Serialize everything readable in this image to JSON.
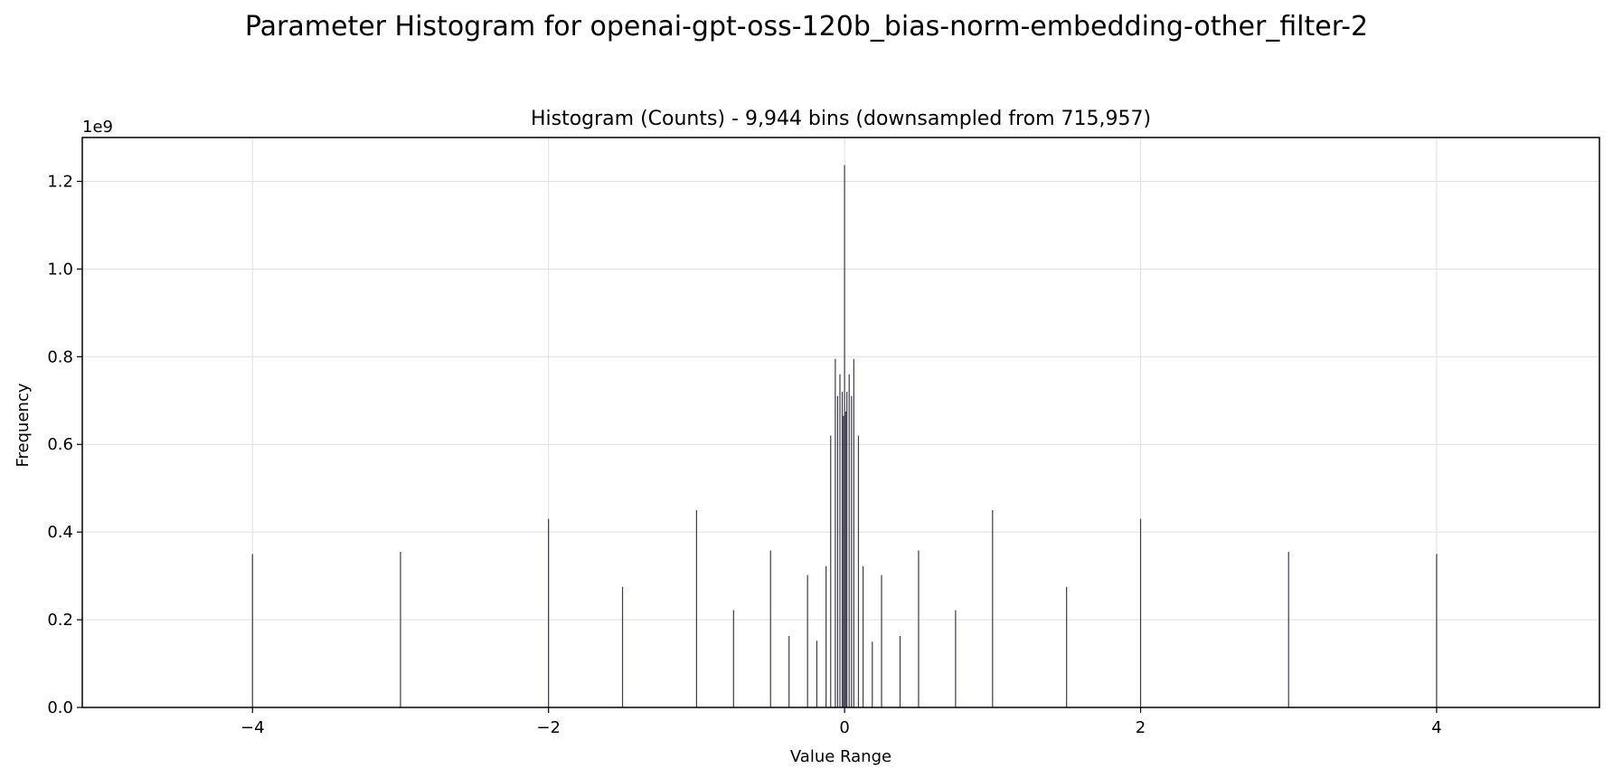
{
  "figure": {
    "suptitle": "Parameter Histogram for openai-gpt-oss-120b_bias-norm-embedding-other_filter-2"
  },
  "chart_data": {
    "type": "bar",
    "title": "Histogram (Counts) - 9,944 bins (downsampled from 715,957)",
    "xlabel": "Value Range",
    "ylabel": "Frequency",
    "y_scale_label": "1e9",
    "xlim": [
      -5.15,
      5.1
    ],
    "ylim": [
      0,
      1.3
    ],
    "grid": true,
    "x_ticks": [
      {
        "value": -4,
        "label": "−4"
      },
      {
        "value": -2,
        "label": "−2"
      },
      {
        "value": 0,
        "label": "0"
      },
      {
        "value": 2,
        "label": "2"
      },
      {
        "value": 4,
        "label": "4"
      }
    ],
    "y_ticks": [
      {
        "value": 0.0,
        "label": "0.0"
      },
      {
        "value": 0.2,
        "label": "0.2"
      },
      {
        "value": 0.4,
        "label": "0.4"
      },
      {
        "value": 0.6,
        "label": "0.6"
      },
      {
        "value": 0.8,
        "label": "0.8"
      },
      {
        "value": 1.0,
        "label": "1.0"
      },
      {
        "value": 1.2,
        "label": "1.2"
      }
    ],
    "bar_color": "#1a1a2e",
    "grid_color": "#e0e0e0",
    "bars": [
      {
        "x": -4.0,
        "y": 0.35
      },
      {
        "x": -3.0,
        "y": 0.355
      },
      {
        "x": -2.0,
        "y": 0.43
      },
      {
        "x": -1.5,
        "y": 0.275
      },
      {
        "x": -1.0,
        "y": 0.45
      },
      {
        "x": -0.75,
        "y": 0.222
      },
      {
        "x": -0.5,
        "y": 0.358
      },
      {
        "x": -0.375,
        "y": 0.163
      },
      {
        "x": -0.25,
        "y": 0.302
      },
      {
        "x": -0.1875,
        "y": 0.152
      },
      {
        "x": -0.125,
        "y": 0.322
      },
      {
        "x": -0.09375,
        "y": 0.62
      },
      {
        "x": -0.0625,
        "y": 0.795
      },
      {
        "x": -0.046875,
        "y": 0.71
      },
      {
        "x": -0.03125,
        "y": 0.76
      },
      {
        "x": -0.015625,
        "y": 0.72
      },
      {
        "x": -0.0078,
        "y": 0.665
      },
      {
        "x": 0.0,
        "y": 1.237
      },
      {
        "x": 0.0078,
        "y": 0.675
      },
      {
        "x": 0.015625,
        "y": 0.72
      },
      {
        "x": 0.03125,
        "y": 0.76
      },
      {
        "x": 0.046875,
        "y": 0.71
      },
      {
        "x": 0.0625,
        "y": 0.795
      },
      {
        "x": 0.09375,
        "y": 0.62
      },
      {
        "x": 0.125,
        "y": 0.322
      },
      {
        "x": 0.1875,
        "y": 0.15
      },
      {
        "x": 0.25,
        "y": 0.302
      },
      {
        "x": 0.375,
        "y": 0.163
      },
      {
        "x": 0.5,
        "y": 0.358
      },
      {
        "x": 0.75,
        "y": 0.222
      },
      {
        "x": 1.0,
        "y": 0.45
      },
      {
        "x": 1.5,
        "y": 0.275
      },
      {
        "x": 2.0,
        "y": 0.43
      },
      {
        "x": 3.0,
        "y": 0.355
      },
      {
        "x": 4.0,
        "y": 0.35
      }
    ]
  }
}
